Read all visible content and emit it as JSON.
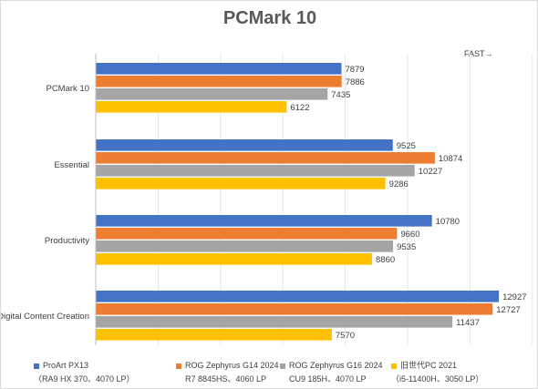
{
  "chart_data": {
    "type": "bar",
    "orientation": "horizontal",
    "title": "PCMark 10",
    "annotation": "FAST→",
    "categories": [
      "PCMark 10",
      "Essential",
      "Productivity",
      "Digital Content Creation"
    ],
    "xlim": [
      0,
      14000
    ],
    "grid": true,
    "legend_position": "bottom",
    "series": [
      {
        "name": "ProArt PX13",
        "name_sub": "（RA9 HX 370、4070 LP）",
        "color": "#4472c4",
        "values": [
          7879,
          9525,
          10780,
          12927
        ]
      },
      {
        "name": "ROG Zephyrus G14 2024",
        "name_sub": "R7 8845HS、4060 LP",
        "color": "#ed7d31",
        "values": [
          7886,
          10874,
          9660,
          12727
        ]
      },
      {
        "name": "ROG Zephyrus G16 2024",
        "name_sub": "CU9 185H、4070 LP",
        "color": "#a5a5a5",
        "values": [
          7435,
          10227,
          9535,
          11437
        ]
      },
      {
        "name": "旧世代PC 2021",
        "name_sub": "（i5-11400H、3050 LP）",
        "color": "#ffc000",
        "values": [
          6122,
          9286,
          8860,
          7570
        ]
      }
    ]
  }
}
